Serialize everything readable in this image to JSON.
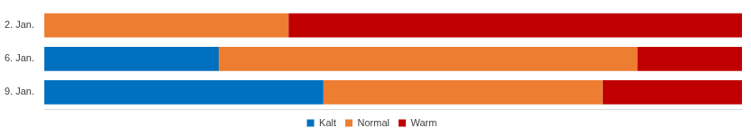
{
  "chart_data": {
    "type": "bar",
    "orientation": "horizontal",
    "stacked": true,
    "categories": [
      "2. Jan.",
      "6. Jan.",
      "9. Jan."
    ],
    "series": [
      {
        "name": "Kalt",
        "color": "#0070c0",
        "values": [
          0,
          25,
          40
        ]
      },
      {
        "name": "Normal",
        "color": "#ed7d31",
        "values": [
          35,
          60,
          40
        ]
      },
      {
        "name": "Warm",
        "color": "#c00000",
        "values": [
          65,
          15,
          20
        ]
      }
    ],
    "xlim": [
      0,
      100
    ],
    "grid": false,
    "legend": "bottom",
    "tick_labels": "y",
    "data_labels": false
  }
}
